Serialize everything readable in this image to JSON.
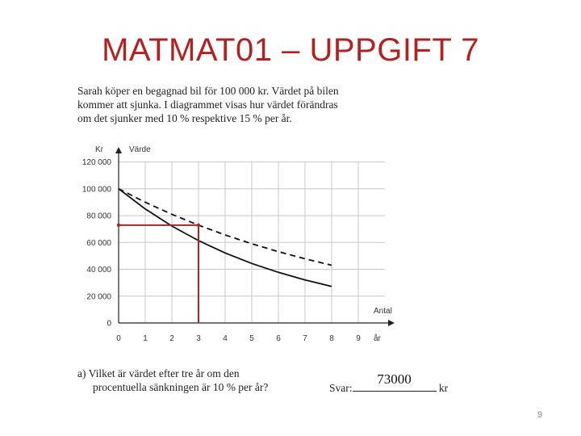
{
  "slide": {
    "title": "MATMAT01 – UPPGIFT 7",
    "page_number": "9"
  },
  "problem": {
    "intro_lines": [
      "Sarah köper en begagnad bil för 100 000 kr. Värdet på bilen",
      "kommer att sjunka. I diagrammet visas hur värdet förändras",
      "om det sjunker med 10 % respektive 15 % per år."
    ],
    "question_label": "a)",
    "question_lines": [
      "Vilket är värdet efter tre år om den",
      "procentuella sänkningen är 10 % per år?"
    ],
    "answer_prefix": "Svar:",
    "answer_value": "73000",
    "answer_unit": "kr"
  },
  "chart_data": {
    "type": "line",
    "y_unit": "Kr",
    "ylabel": "Värde",
    "xlabel_lines": [
      "Antal",
      "år"
    ],
    "xlim": [
      0,
      10
    ],
    "ylim": [
      0,
      130000
    ],
    "x_ticks": [
      0,
      1,
      2,
      3,
      4,
      5,
      6,
      7,
      8,
      9
    ],
    "y_ticks": [
      0,
      20000,
      40000,
      60000,
      80000,
      100000,
      120000
    ],
    "y_tick_labels": [
      "0",
      "20 000",
      "40 000",
      "60 000",
      "80 000",
      "100 000",
      "120 000"
    ],
    "grid": true,
    "series": [
      {
        "style": "dashed",
        "color": "#111111",
        "x": [
          0,
          1,
          2,
          3,
          4,
          5,
          6,
          7,
          8
        ],
        "y": [
          100000,
          90000,
          81000,
          72900,
          65610,
          59049,
          53144,
          47830,
          43047
        ]
      },
      {
        "style": "solid",
        "color": "#111111",
        "x": [
          0,
          1,
          2,
          3,
          4,
          5,
          6,
          7,
          8
        ],
        "y": [
          100000,
          85000,
          72250,
          61413,
          52201,
          44371,
          37715,
          32058,
          27249
        ]
      }
    ],
    "annotation": {
      "color": "#b22222",
      "x": 3,
      "y": 72900
    }
  }
}
